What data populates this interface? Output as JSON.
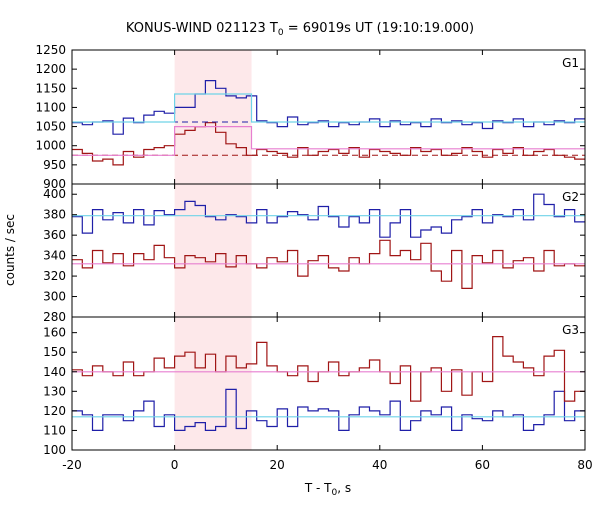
{
  "chart_data": {
    "type": "line",
    "title": {
      "prefix": "KONUS-WIND 021123 T",
      "sub": "0",
      "suffix": " = 69019s UT (19:10:19.000)"
    },
    "xlabel": {
      "prefix": "T - T",
      "sub": "0",
      "suffix": ", s"
    },
    "ylabel": "counts / sec",
    "xlim": [
      -20,
      80
    ],
    "x_ticks": [
      -20,
      0,
      20,
      40,
      60,
      80
    ],
    "x_tick_labels": [
      "-20",
      "0",
      "20",
      "40",
      "60",
      "80"
    ],
    "highlight_interval": [
      0,
      15
    ],
    "step_edges_x": [
      -20,
      -18,
      -16,
      -14,
      -12,
      -10,
      -8,
      -6,
      -4,
      -2,
      0,
      2,
      4,
      6,
      8,
      10,
      12,
      14,
      16,
      18,
      20,
      22,
      24,
      26,
      28,
      30,
      32,
      34,
      36,
      38,
      40,
      42,
      44,
      46,
      48,
      50,
      52,
      54,
      56,
      58,
      60,
      62,
      64,
      66,
      68,
      70,
      72,
      74,
      76,
      78,
      80
    ],
    "panels": [
      {
        "name": "G1",
        "ylim": [
          900,
          1250
        ],
        "y_ticks": [
          900,
          950,
          1000,
          1050,
          1100,
          1150,
          1200,
          1250
        ],
        "y_tick_labels": [
          "900",
          "950",
          "1000",
          "1050",
          "1100",
          "1150",
          "1200",
          "1250"
        ],
        "series": [
          {
            "color": "#1f1fa8",
            "values": [
              1060,
              1055,
              1062,
              1065,
              1030,
              1072,
              1060,
              1080,
              1090,
              1085,
              1100,
              1100,
              1135,
              1170,
              1150,
              1130,
              1125,
              1130,
              1065,
              1060,
              1050,
              1075,
              1055,
              1060,
              1065,
              1050,
              1060,
              1055,
              1062,
              1070,
              1050,
              1065,
              1055,
              1060,
              1050,
              1070,
              1060,
              1065,
              1055,
              1060,
              1045,
              1065,
              1060,
              1070,
              1050,
              1062,
              1055,
              1065,
              1060,
              1070
            ]
          },
          {
            "color": "#a01515",
            "values": [
              990,
              980,
              960,
              965,
              950,
              985,
              970,
              990,
              995,
              1000,
              1030,
              1040,
              1050,
              1060,
              1035,
              1005,
              995,
              975,
              990,
              985,
              980,
              970,
              995,
              975,
              985,
              990,
              980,
              995,
              970,
              990,
              985,
              980,
              975,
              995,
              985,
              990,
              975,
              980,
              995,
              985,
              970,
              990,
              980,
              995,
              975,
              985,
              990,
              975,
              970,
              965
            ]
          }
        ],
        "backgrounds": [
          {
            "color": "#1f1fa8",
            "value": 1062,
            "style": "dashed"
          },
          {
            "color": "#a01515",
            "value": 975,
            "style": "dashed"
          }
        ],
        "fits": [
          {
            "color": "#6fd3e8",
            "segments": [
              [
                -20,
                0,
                1062
              ],
              [
                0,
                15,
                1135
              ],
              [
                15,
                80,
                1062
              ]
            ]
          },
          {
            "color": "#e77fd0",
            "segments": [
              [
                -20,
                0,
                975
              ],
              [
                0,
                15,
                1050
              ],
              [
                15,
                80,
                992
              ]
            ]
          }
        ]
      },
      {
        "name": "G2",
        "ylim": [
          280,
          410
        ],
        "y_ticks": [
          280,
          300,
          320,
          340,
          360,
          380,
          400
        ],
        "y_tick_labels": [
          "280",
          "300",
          "320",
          "340",
          "360",
          "380",
          "400"
        ],
        "series": [
          {
            "color": "#1f1fa8",
            "values": [
              378,
              362,
              385,
              375,
              382,
              372,
              385,
              370,
              384,
              380,
              385,
              393,
              389,
              378,
              375,
              380,
              378,
              372,
              385,
              372,
              378,
              383,
              380,
              375,
              388,
              378,
              368,
              378,
              372,
              385,
              358,
              372,
              385,
              358,
              365,
              368,
              362,
              375,
              378,
              385,
              372,
              380,
              378,
              385,
              375,
              400,
              390,
              378,
              385,
              373
            ]
          },
          {
            "color": "#a01515",
            "values": [
              336,
              328,
              345,
              333,
              342,
              330,
              342,
              336,
              350,
              338,
              328,
              340,
              338,
              334,
              342,
              329,
              340,
              332,
              328,
              338,
              334,
              345,
              320,
              335,
              340,
              328,
              325,
              338,
              332,
              342,
              355,
              340,
              345,
              336,
              352,
              325,
              315,
              345,
              308,
              340,
              333,
              345,
              328,
              335,
              338,
              325,
              345,
              330,
              332,
              330
            ]
          }
        ],
        "fits": [
          {
            "color": "#6fd3e8",
            "segments": [
              [
                -20,
                80,
                379
              ]
            ]
          },
          {
            "color": "#e77fd0",
            "segments": [
              [
                -20,
                80,
                332
              ]
            ]
          }
        ]
      },
      {
        "name": "G3",
        "ylim": [
          100,
          168
        ],
        "y_ticks": [
          100,
          110,
          120,
          130,
          140,
          150,
          160
        ],
        "y_tick_labels": [
          "100",
          "110",
          "120",
          "130",
          "140",
          "150",
          "160"
        ],
        "series": [
          {
            "color": "#1f1fa8",
            "values": [
              120,
              118,
              110,
              118,
              118,
              115,
              120,
              125,
              112,
              118,
              110,
              112,
              114,
              110,
              112,
              131,
              111,
              120,
              115,
              112,
              121,
              112,
              122,
              120,
              121,
              120,
              110,
              118,
              122,
              120,
              118,
              125,
              110,
              115,
              120,
              118,
              122,
              110,
              118,
              116,
              115,
              120,
              117,
              118,
              110,
              113,
              118,
              130,
              115,
              120
            ]
          },
          {
            "color": "#a01515",
            "values": [
              141,
              138,
              143,
              140,
              138,
              145,
              138,
              140,
              147,
              142,
              148,
              150,
              142,
              149,
              140,
              148,
              142,
              144,
              155,
              143,
              140,
              138,
              143,
              135,
              140,
              145,
              138,
              140,
              142,
              146,
              140,
              134,
              143,
              125,
              140,
              142,
              130,
              141,
              128,
              140,
              135,
              158,
              148,
              145,
              142,
              138,
              148,
              151,
              125,
              130
            ]
          }
        ],
        "fits": [
          {
            "color": "#6fd3e8",
            "segments": [
              [
                -20,
                80,
                117
              ]
            ]
          },
          {
            "color": "#e77fd0",
            "segments": [
              [
                -20,
                80,
                140
              ]
            ]
          }
        ]
      }
    ]
  }
}
